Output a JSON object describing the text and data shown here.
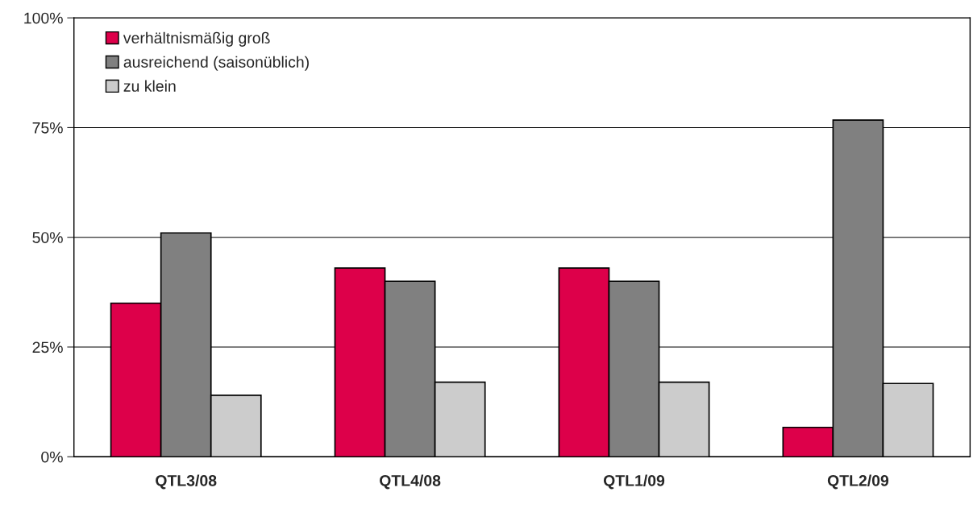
{
  "chart_data": {
    "type": "bar",
    "categories": [
      "QTL3/08",
      "QTL4/08",
      "QTL1/09",
      "QTL2/09"
    ],
    "series": [
      {
        "name": "verhältnismäßig groß",
        "color": "#dd004a",
        "values": [
          35,
          43,
          43,
          6.7
        ]
      },
      {
        "name": "ausreichend (saisonüblich)",
        "color": "#808080",
        "values": [
          51,
          40,
          40,
          76.7
        ]
      },
      {
        "name": "zu klein",
        "color": "#cccccc",
        "values": [
          14,
          17,
          17,
          16.7
        ]
      }
    ],
    "ylim": [
      0,
      100
    ],
    "yticks": [
      {
        "value": 0,
        "label": "0%"
      },
      {
        "value": 25,
        "label": "25%"
      },
      {
        "value": 50,
        "label": "50%"
      },
      {
        "value": 75,
        "label": "75%"
      },
      {
        "value": 100,
        "label": "100%"
      }
    ],
    "grid": "y",
    "legend": "top left"
  }
}
